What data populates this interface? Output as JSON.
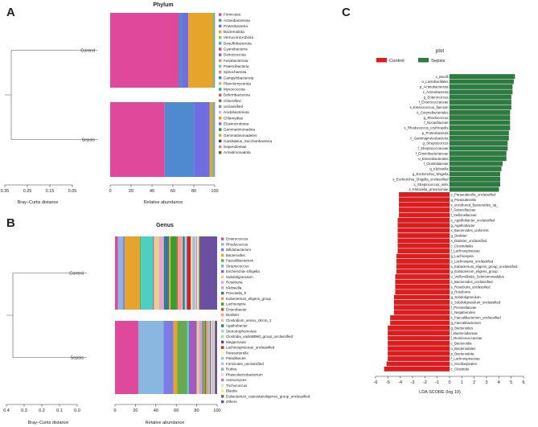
{
  "chart_data": [
    {
      "panel": "A",
      "type": "stacked-bar-dendrogram",
      "title": "Phylum",
      "xlabel": "Relative abundance",
      "dendro_xlabel": "Bray–Curtis distance",
      "dendro_ticks": [
        "0.35",
        "0.25",
        "0.15",
        "0.05"
      ],
      "xticks": [
        "0",
        "20",
        "40",
        "60",
        "80",
        "100"
      ],
      "samples": [
        "Control",
        "Sepsis"
      ],
      "taxa": [
        "Firmicutes",
        "Actinobacteriota",
        "Proteobacteria",
        "Bacteroidota",
        "Verrucomicrobiota",
        "Desulfobacterota",
        "Cyanobacteria",
        "Deinococcota",
        "Fusobacteriota",
        "Patescibacteria",
        "Spirochaetota",
        "Campylobacterota",
        "Planctomycetota",
        "Myxococcota",
        "Deferribacterota",
        "Chloroflexi",
        "unclassified",
        "Acidobacteriota",
        "Chlamydiae",
        "Elusimicrobiota",
        "Gemmatimonadota",
        "Gemmatimonadetes",
        "Candidatus_Saccharibacteria",
        "Dependentiae",
        "Armatimonadota"
      ],
      "colors": [
        "#e0499b",
        "#4f8ad0",
        "#6e6ee0",
        "#e6a52a",
        "#8cc63f",
        "#36b3b3",
        "#d05050",
        "#9b59b6",
        "#c0a060",
        "#66cdaa",
        "#f08080",
        "#4682b4",
        "#bdb76b",
        "#20b2aa",
        "#cd5c5c",
        "#5b8c3a",
        "#8f8f8f",
        "#b0c4de",
        "#ff8c00",
        "#7b68ee",
        "#2e8b57",
        "#daa520",
        "#483d8b",
        "#bc8f8f",
        "#556b2f"
      ],
      "series": [
        {
          "name": "Control",
          "values": [
            66,
            3,
            6,
            23,
            1,
            0.3,
            0.2,
            0.1,
            0.1,
            0.1,
            0.05,
            0.05,
            0.05,
            0.05,
            0.05,
            0.05,
            0.05,
            0.02,
            0.02,
            0.02,
            0.02,
            0.02,
            0.02,
            0.02,
            0.02
          ]
        },
        {
          "name": "Sepsis",
          "values": [
            52,
            28,
            15,
            2,
            1,
            0.5,
            0.3,
            0.2,
            0.2,
            0.1,
            0.05,
            0.05,
            0.05,
            0.05,
            0.05,
            0.05,
            0.05,
            0.02,
            0.02,
            0.02,
            0.02,
            0.02,
            0.02,
            0.02,
            0.02
          ]
        }
      ]
    },
    {
      "panel": "B",
      "type": "stacked-bar-dendrogram",
      "title": "Genus",
      "xlabel": "Relative abundance",
      "dendro_xlabel": "Bray–Curtis distance",
      "dendro_ticks": [
        "0.4",
        "0.3",
        "0.2",
        "0.1",
        "0.0"
      ],
      "xticks": [
        "0",
        "20",
        "40",
        "60",
        "80",
        "100"
      ],
      "samples": [
        "Control",
        "Sepsis"
      ],
      "taxa": [
        "Enterococcus",
        "Rhodococcus",
        "Bifidobacterium",
        "Bacteroides",
        "Faecalibacterium",
        "Streptococcus",
        "Escherichia–Shigella",
        "Subdoligranulum",
        "Roseburia",
        "Klebsiella",
        "Prevotella_9",
        "Eubacterium_eligens_group",
        "Lachnospira",
        "Enterobacter",
        "Dialister",
        "Clostridium_sensu_stricto_1",
        "Agathobacter",
        "Stenotrophomonas",
        "Clostridia_vadinBB60_group_unclassified",
        "Megamonas",
        "Lachnospiraceae_unclassified",
        "Parasutterella",
        "Paludibacter",
        "Firmicutes_unclassified",
        "Rothia",
        "Phascolarctobacterium",
        "Actinomyces",
        "Trichococcus",
        "Blautia",
        "Eubacterium_coprostanoligenes_group_unclassified",
        "Others"
      ],
      "colors": [
        "#e0499b",
        "#8ab7e0",
        "#7d7ce6",
        "#e6a52a",
        "#6aa84f",
        "#4dd0c0",
        "#a05bbf",
        "#e6d08a",
        "#e9a3c9",
        "#c2a5cf",
        "#2e7d8c",
        "#ff9933",
        "#33a02c",
        "#b15928",
        "#fb9a99",
        "#fdbf6f",
        "#1f78b4",
        "#a6cee3",
        "#b2df8a",
        "#6a3d9a",
        "#e31a1c",
        "#ffff99",
        "#8dd3c7",
        "#bebada",
        "#80b1d3",
        "#fccde5",
        "#bc80bd",
        "#ccebc5",
        "#ffed6f",
        "#666666",
        "#6b4fa0"
      ],
      "series": [
        {
          "name": "Control",
          "values": [
            3,
            5,
            1.5,
            15,
            1,
            12,
            1,
            5,
            4,
            1,
            5,
            1.5,
            6,
            1,
            4,
            1,
            2,
            1,
            1,
            1,
            3,
            1,
            1,
            1,
            1,
            1,
            1,
            1,
            1,
            1,
            17
          ]
        },
        {
          "name": "Sepsis",
          "values": [
            24,
            26,
            10,
            4,
            10,
            2,
            8,
            2,
            1,
            3,
            1,
            1,
            1,
            1,
            0.5,
            1,
            0.5,
            1,
            0.5,
            0.5,
            0.5,
            0.5,
            0.5,
            0.5,
            0.5,
            0.5,
            0.5,
            0.5,
            0.5,
            0.5,
            2
          ]
        }
      ]
    },
    {
      "panel": "C",
      "type": "bar",
      "orientation": "horizontal",
      "title": "plot",
      "xlabel": "LDA SCORE (log 10)",
      "xlim": [
        -6,
        6
      ],
      "xticks": [
        "-6",
        "-5",
        "-4",
        "-3",
        "-2",
        "-1",
        "0",
        "1",
        "2",
        "3",
        "4",
        "5",
        "6"
      ],
      "legend": [
        {
          "name": "Control",
          "color": "#e31a1c"
        },
        {
          "name": "Sepsis",
          "color": "#2b7d3f"
        }
      ],
      "categories": [
        "c_Bacilli",
        "o_Lactobacillales",
        "p_Actinobacteriota",
        "c_Actinobacteria",
        "g_Enterococcus",
        "f_Enterococcaceae",
        "s_Enterococcus_faecium",
        "o_Corynebacteriales",
        "g_Rhodococcus",
        "f_Nocardiaceae",
        "s_Rhodococcus_erythropolis",
        "p_Proteobacteria",
        "c_Gammaproteobacteria",
        "g_Streptococcus",
        "f_Streptococcaceae",
        "f_Enterobacteriaceae",
        "o_Enterobacterales",
        "f_Clostridiaceae",
        "g_Klebsiella",
        "g_Escherichia_Shigella",
        "s_Escherichia_Shigella_unclassified",
        "s_Streptococcus_mitis",
        "s_Klebsiella_pneumoniae",
        "s_Parasutterella_unclassified",
        "g_Parasutterella",
        "s_uncultured_Bacteroides_sp_",
        "f_Sutterellaceae",
        "f_Veillonellaceae",
        "s_Agathobacter_unclassified",
        "g_Agathobacter",
        "s_Bacteroides_uniformis",
        "g_Dialister",
        "s_Dialister_unclassified",
        "c_Clostridiales",
        "f_Lachnospiraceae",
        "g_Lachnospira",
        "s_Lachnospira_unclassified",
        "s_Eubacterium_eligens_group_unclassified",
        "g_Eubacterium_eligens_group",
        "o_Veillonellales_Selenomonadales",
        "s_Bacteroides_unclassified",
        "s_Roseburia_unclassified",
        "g_Roseburia",
        "g_Subdoligranulum",
        "s_Subdoligranulum_unclassified",
        "f_Prevotellaceae",
        "c_Negativicutes",
        "s_Faecalibacterium_unclassified",
        "g_Faecalibacterium",
        "g_Bacteroides",
        "f_Bacteroidaceae",
        "f_Ruminococcaceae",
        "c_Bacteroidia",
        "o_Bacteroidales",
        "p_Bacteroidota",
        "f_Lachnospiraceae",
        "c_Oscillospirales",
        "c_Clostridia"
      ],
      "values": [
        5.3,
        5.2,
        5.1,
        5.1,
        5.0,
        5.0,
        5.0,
        4.9,
        4.9,
        4.9,
        4.9,
        4.8,
        4.8,
        4.7,
        4.7,
        4.6,
        4.6,
        4.3,
        4.2,
        4.1,
        4.1,
        4.1,
        4.0,
        -4.1,
        -4.1,
        -4.1,
        -4.1,
        -4.1,
        -4.2,
        -4.2,
        -4.2,
        -4.2,
        -4.2,
        -4.2,
        -4.2,
        -4.3,
        -4.3,
        -4.3,
        -4.3,
        -4.4,
        -4.4,
        -4.4,
        -4.4,
        -4.5,
        -4.5,
        -4.5,
        -4.5,
        -4.8,
        -4.8,
        -5.0,
        -5.0,
        -5.0,
        -5.0,
        -5.0,
        -5.0,
        -5.0,
        -5.1,
        -5.3
      ]
    }
  ],
  "panel_letters": [
    "A",
    "B",
    "C"
  ]
}
